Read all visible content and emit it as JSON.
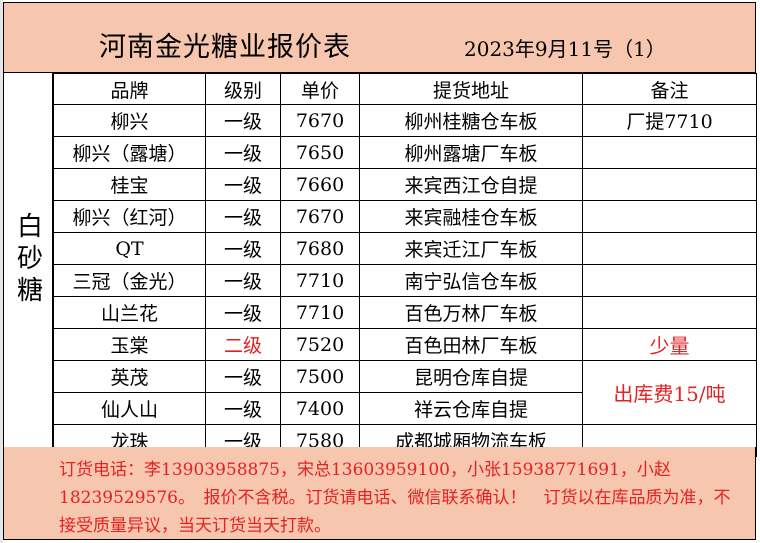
{
  "title": "河南金光糖业报价表",
  "date": "2023年9月11号（1）",
  "category": "白砂糖",
  "columns": [
    "品牌",
    "级别",
    "单价",
    "提货地址",
    "备注"
  ],
  "rows": [
    {
      "brand": "柳兴",
      "grade": "一级",
      "price": "7670",
      "address": "柳州桂糖仓车板",
      "note": "厂提7710"
    },
    {
      "brand": "柳兴（露塘）",
      "grade": "一级",
      "price": "7650",
      "address": "柳州露塘厂车板",
      "note": ""
    },
    {
      "brand": "桂宝",
      "grade": "一级",
      "price": "7660",
      "address": "来宾西江仓自提",
      "note": ""
    },
    {
      "brand": "柳兴（红河）",
      "grade": "一级",
      "price": "7670",
      "address": "来宾融桂仓车板",
      "note": ""
    },
    {
      "brand": "QT",
      "grade": "一级",
      "price": "7680",
      "address": "来宾迁江厂车板",
      "note": ""
    },
    {
      "brand": "三冠（金光）",
      "grade": "一级",
      "price": "7710",
      "address": "南宁弘信仓车板",
      "note": ""
    },
    {
      "brand": "山兰花",
      "grade": "一级",
      "price": "7710",
      "address": "百色万林厂车板",
      "note": ""
    },
    {
      "brand": "玉棠",
      "grade": "二级",
      "price": "7520",
      "address": "百色田林厂车板",
      "note": "少量"
    },
    {
      "brand": "英茂",
      "grade": "一级",
      "price": "7500",
      "address": "昆明仓库自提",
      "note": "出库费15/吨"
    },
    {
      "brand": "仙人山",
      "grade": "一级",
      "price": "7400",
      "address": "祥云仓库自提",
      "note": ""
    },
    {
      "brand": "龙珠",
      "grade": "一级",
      "price": "7580",
      "address": "成都城厢物流车板",
      "note": ""
    }
  ],
  "footer": "订货电话：李13903958875，宋总13603959100，小张15938771691，小赵18239529576。　报价不含税。订货请电话、微信联系确认！　订货以在库品质为准，不接受质量异议，当天订货当天打款。",
  "colors": {
    "header_bg": "#f7c6ae",
    "highlight": "#e32222"
  }
}
